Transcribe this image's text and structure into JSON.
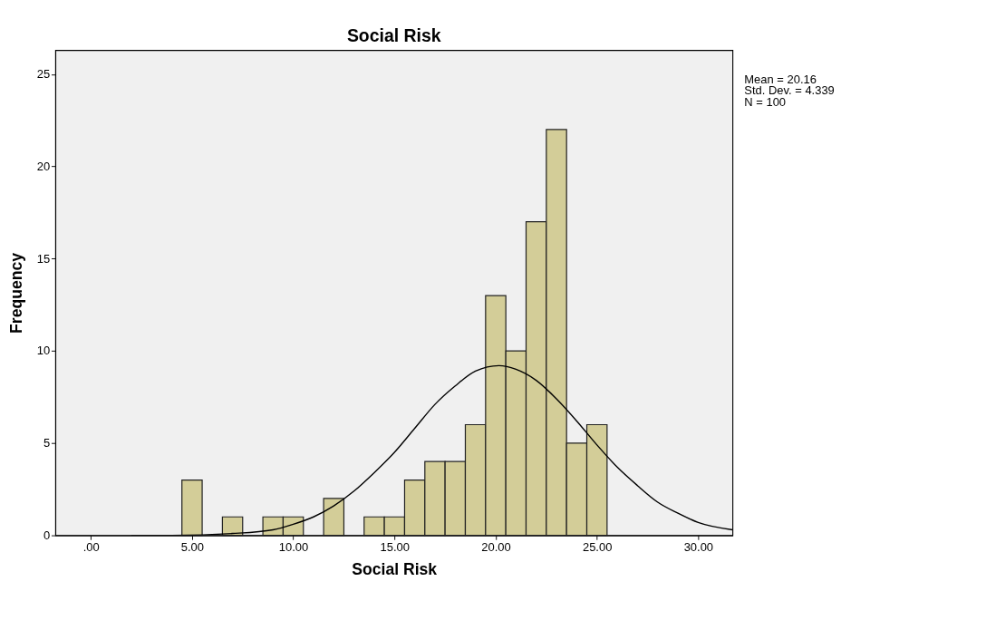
{
  "chart_data": {
    "type": "histogram",
    "title": "Social Risk",
    "xlabel": "Social Risk",
    "ylabel": "Frequency",
    "bins": [
      4.5,
      5.5,
      6.5,
      7.5,
      8.5,
      9.5,
      10.5,
      11.5,
      12.5,
      13.5,
      14.5,
      15.5,
      16.5,
      17.5,
      18.5,
      19.5,
      20.5,
      21.5,
      22.5,
      23.5,
      24.5,
      25.5
    ],
    "values": [
      3,
      0,
      1,
      0,
      1,
      1,
      0,
      2,
      0,
      1,
      1,
      3,
      4,
      4,
      6,
      13,
      10,
      17,
      22,
      5,
      6
    ],
    "color": "#d3cd98",
    "series": [
      {
        "type": "line",
        "color": "#000000",
        "x": [
          2,
          4,
          7,
          9,
          10,
          11,
          12,
          13,
          14,
          15,
          16,
          17,
          18,
          19,
          20.16,
          21,
          22,
          23,
          24,
          25,
          26,
          27,
          28,
          29,
          30,
          31.7
        ],
        "values": [
          0.0,
          0.0,
          0.1,
          0.3,
          0.6,
          1.0,
          1.6,
          2.4,
          3.4,
          4.5,
          5.8,
          7.1,
          8.1,
          8.9,
          9.2,
          9.0,
          8.4,
          7.4,
          6.2,
          4.9,
          3.7,
          2.7,
          1.8,
          1.2,
          0.7,
          0.3
        ]
      }
    ],
    "xlim": [
      -1.75,
      31.7
    ],
    "xticks": [
      {
        "value": 0,
        "label": ".00"
      },
      {
        "value": 5,
        "label": "5.00"
      },
      {
        "value": 10,
        "label": "10.00"
      },
      {
        "value": 15,
        "label": "15.00"
      },
      {
        "value": 20,
        "label": "20.00"
      },
      {
        "value": 25,
        "label": "25.00"
      },
      {
        "value": 30,
        "label": "30.00"
      }
    ],
    "ylim": [
      0,
      26.3
    ],
    "yticks": [
      0,
      5,
      10,
      15,
      20,
      25
    ],
    "grid": false,
    "annotations": [
      "Mean = 20.16",
      "Std. Dev. = 4.339",
      "N = 100"
    ]
  }
}
